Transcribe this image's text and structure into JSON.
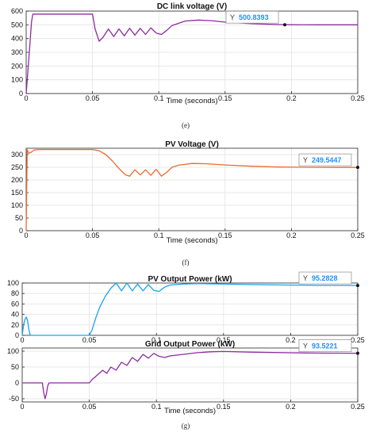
{
  "chart_data": [
    {
      "type": "line",
      "title": "DC link voltage (V)",
      "xlabel": "Time (seconds)",
      "ylabel": "",
      "xlim": [
        0,
        0.25
      ],
      "ylim": [
        0,
        600
      ],
      "xticks": [
        0,
        0.05,
        0.1,
        0.15,
        0.2,
        0.25
      ],
      "xtick_labels": [
        "0",
        "0.05",
        "0.1",
        "0.15",
        "0.2",
        "0.25"
      ],
      "yticks": [
        0,
        100,
        200,
        300,
        400,
        500,
        600
      ],
      "ytick_labels": [
        "0",
        "100",
        "200",
        "300",
        "400",
        "500",
        "600"
      ],
      "grid": true,
      "color": "#8b2c9f",
      "series": [
        {
          "x": [
            0,
            0.002,
            0.004,
            0.005,
            0.01,
            0.03,
            0.05,
            0.052,
            0.055,
            0.058,
            0.062,
            0.066,
            0.07,
            0.074,
            0.078,
            0.082,
            0.086,
            0.09,
            0.094,
            0.098,
            0.102,
            0.106,
            0.11,
            0.12,
            0.13,
            0.14,
            0.15,
            0.17,
            0.19,
            0.2,
            0.22,
            0.25
          ],
          "y": [
            0,
            250,
            520,
            578,
            578,
            578,
            578,
            470,
            380,
            410,
            470,
            415,
            470,
            420,
            475,
            425,
            475,
            430,
            478,
            440,
            430,
            460,
            495,
            528,
            535,
            530,
            520,
            508,
            502,
            501,
            500,
            500
          ]
        }
      ],
      "datatip": {
        "label": "Y",
        "value": "500.8393",
        "x": 0.195,
        "y": 500.8393
      }
    },
    {
      "type": "line",
      "title": "PV Voltage (V)",
      "xlabel": "Time (seconds)",
      "ylabel": "",
      "xlim": [
        0,
        0.25
      ],
      "ylim": [
        0,
        325
      ],
      "xticks": [
        0,
        0.05,
        0.1,
        0.15,
        0.2,
        0.25
      ],
      "xtick_labels": [
        "0",
        "0.05",
        "0.1",
        "0.15",
        "0.2",
        "0.25"
      ],
      "yticks": [
        0,
        50,
        100,
        150,
        200,
        250,
        300
      ],
      "ytick_labels": [
        "0",
        "50",
        "100",
        "150",
        "200",
        "250",
        "300"
      ],
      "grid": true,
      "color": "#ee6a2f",
      "series": [
        {
          "x": [
            0,
            0.0008,
            0.002,
            0.004,
            0.006,
            0.01,
            0.03,
            0.05,
            0.055,
            0.06,
            0.065,
            0.07,
            0.075,
            0.078,
            0.082,
            0.086,
            0.09,
            0.094,
            0.098,
            0.102,
            0.106,
            0.11,
            0.115,
            0.125,
            0.135,
            0.15,
            0.17,
            0.19,
            0.21,
            0.23,
            0.25
          ],
          "y": [
            0,
            320,
            305,
            310,
            318,
            320,
            320,
            320,
            315,
            300,
            275,
            245,
            220,
            215,
            240,
            220,
            240,
            218,
            242,
            215,
            230,
            250,
            258,
            265,
            264,
            259,
            254,
            251,
            250,
            249.5,
            249.5
          ]
        }
      ],
      "datatip": {
        "label": "Y",
        "value": "249.5447",
        "x": 0.25,
        "y": 249.5447
      }
    },
    {
      "type": "line",
      "title": "PV Output Power (kW)",
      "xlabel": "",
      "ylabel": "",
      "xlim": [
        0,
        0.25
      ],
      "ylim": [
        0,
        100
      ],
      "xticks": [
        0,
        0.05,
        0.1,
        0.15,
        0.2,
        0.25
      ],
      "xtick_labels": [
        "0",
        "0.05",
        "0.1",
        "0.15",
        "0.2",
        "0.25"
      ],
      "yticks": [
        0,
        20,
        40,
        60,
        80,
        100
      ],
      "ytick_labels": [
        "0",
        "20",
        "40",
        "60",
        "80",
        "100"
      ],
      "grid": true,
      "color": "#1aa3e8",
      "series": [
        {
          "x": [
            0,
            0.001,
            0.002,
            0.003,
            0.004,
            0.005,
            0.006,
            0.008,
            0.05,
            0.052,
            0.055,
            0.058,
            0.062,
            0.066,
            0.07,
            0.074,
            0.078,
            0.082,
            0.086,
            0.09,
            0.094,
            0.098,
            0.102,
            0.106,
            0.11,
            0.12,
            0.13,
            0.15,
            0.17,
            0.2,
            0.22,
            0.25
          ],
          "y": [
            0,
            20,
            30,
            35,
            28,
            10,
            0,
            0,
            0,
            10,
            35,
            55,
            75,
            90,
            100,
            85,
            100,
            85,
            98,
            85,
            97,
            86,
            84,
            92,
            96,
            98,
            99,
            98,
            97,
            96,
            95.5,
            95.3
          ]
        }
      ],
      "datatip": {
        "label": "Y",
        "value": "95.2828",
        "x": 0.25,
        "y": 95.2828
      }
    },
    {
      "type": "line",
      "title": "Grid Output Power (kW)",
      "xlabel": "Time (seconds)",
      "ylabel": "",
      "xlim": [
        0,
        0.25
      ],
      "ylim": [
        -60,
        110
      ],
      "xticks": [
        0,
        0.05,
        0.1,
        0.15,
        0.2,
        0.25
      ],
      "xtick_labels": [
        "0",
        "0.05",
        "0.1",
        "0.15",
        "0.2",
        "0.25"
      ],
      "yticks": [
        -50,
        0,
        50,
        100
      ],
      "ytick_labels": [
        "-50",
        "0",
        "50",
        "100"
      ],
      "grid": true,
      "color": "#8b2c9f",
      "series": [
        {
          "x": [
            0,
            0.015,
            0.016,
            0.017,
            0.018,
            0.019,
            0.02,
            0.05,
            0.052,
            0.056,
            0.06,
            0.063,
            0.066,
            0.07,
            0.074,
            0.078,
            0.082,
            0.086,
            0.09,
            0.094,
            0.098,
            0.102,
            0.106,
            0.11,
            0.12,
            0.13,
            0.14,
            0.15,
            0.17,
            0.2,
            0.22,
            0.25
          ],
          "y": [
            0,
            0,
            -30,
            -50,
            -35,
            -10,
            0,
            0,
            10,
            25,
            40,
            30,
            50,
            40,
            65,
            55,
            80,
            68,
            90,
            78,
            93,
            84,
            80,
            85,
            90,
            95,
            98,
            99,
            97,
            95,
            94,
            93.5
          ]
        }
      ],
      "datatip": {
        "label": "Y",
        "value": "93.5221",
        "x": 0.25,
        "y": 93.5221
      }
    }
  ],
  "captions": [
    "(e)",
    "(f)",
    "(g)"
  ]
}
